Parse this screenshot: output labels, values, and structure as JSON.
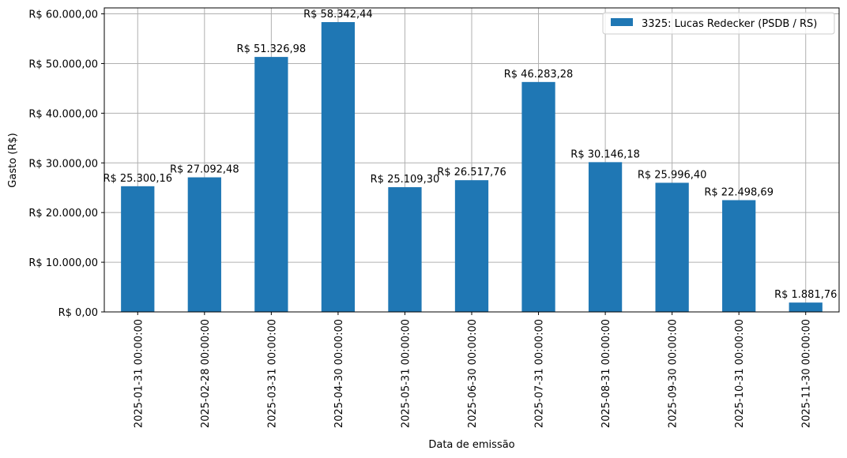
{
  "chart_data": {
    "type": "bar",
    "title": "",
    "xlabel": "Data de emissão",
    "ylabel": "Gasto (R$)",
    "ylim": [
      0,
      61200
    ],
    "grid": true,
    "legend_position": "upper right",
    "categories": [
      "2025-01-31 00:00:00",
      "2025-02-28 00:00:00",
      "2025-03-31 00:00:00",
      "2025-04-30 00:00:00",
      "2025-05-31 00:00:00",
      "2025-06-30 00:00:00",
      "2025-07-31 00:00:00",
      "2025-08-31 00:00:00",
      "2025-09-30 00:00:00",
      "2025-10-31 00:00:00",
      "2025-11-30 00:00:00"
    ],
    "series": [
      {
        "name": "3325: Lucas Redecker (PSDB / RS)",
        "color": "#1f77b4",
        "values": [
          25300.16,
          27092.48,
          51326.98,
          58342.44,
          25109.3,
          26517.76,
          46283.28,
          30146.18,
          25996.4,
          22498.69,
          1881.76
        ],
        "labels": [
          "R$ 25.300,16",
          "R$ 27.092,48",
          "R$ 51.326,98",
          "R$ 58.342,44",
          "R$ 25.109,30",
          "R$ 26.517,76",
          "R$ 46.283,28",
          "R$ 30.146,18",
          "R$ 25.996,40",
          "R$ 22.498,69",
          "R$ 1.881,76"
        ]
      }
    ],
    "yticks": [
      {
        "value": 0,
        "label": "R$ 0,00"
      },
      {
        "value": 10000,
        "label": "R$ 10.000,00"
      },
      {
        "value": 20000,
        "label": "R$ 20.000,00"
      },
      {
        "value": 30000,
        "label": "R$ 30.000,00"
      },
      {
        "value": 40000,
        "label": "R$ 40.000,00"
      },
      {
        "value": 50000,
        "label": "R$ 50.000,00"
      },
      {
        "value": 60000,
        "label": "R$ 60.000,00"
      }
    ]
  }
}
